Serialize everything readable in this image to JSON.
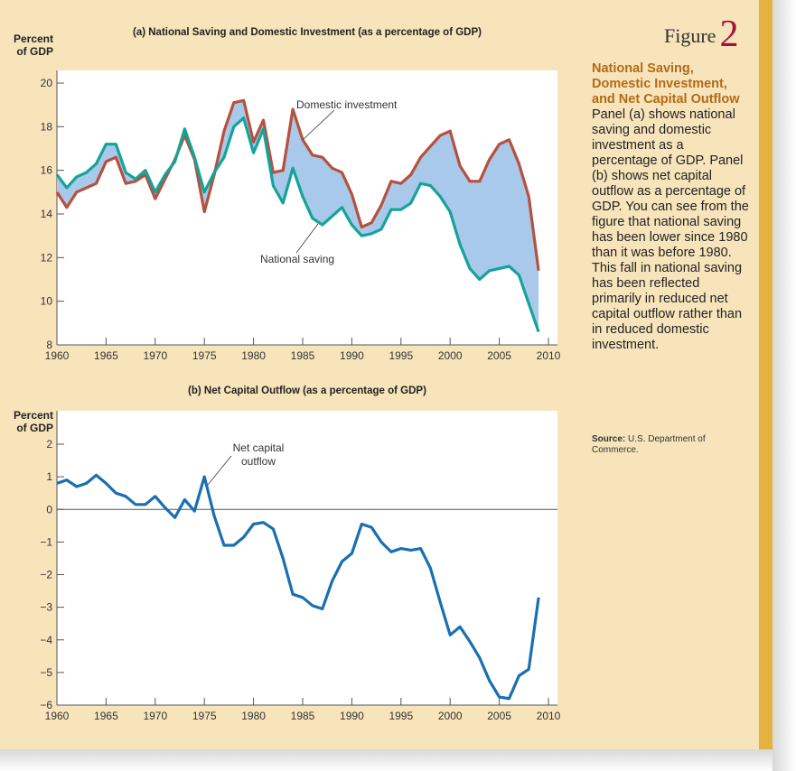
{
  "figure": {
    "label": "Figure",
    "number": "2"
  },
  "caption": {
    "title": "National Saving, Domestic Investment, and Net Capital Outflow",
    "body": "Panel (a) shows national saving and domestic investment as a percentage of GDP. Panel (b) shows net capital outflow as a percentage of GDP. You can see from the figure that national saving has been lower since 1980 than it was before 1980. This fall in national saving has been reflected primarily in reduced net capital outflow rather than in reduced domestic investment.",
    "source_label": "Source:",
    "source_text": "U.S. Department of Commerce."
  },
  "colors": {
    "background": "#f8e4bb",
    "stripe": "#e4b23e",
    "investment": "#b5513f",
    "saving": "#14a39a",
    "fill": "#a9c9ea",
    "outflow": "#1a6fb0",
    "accent": "#a3123a",
    "title": "#b26b16"
  },
  "chart_data": [
    {
      "type": "line",
      "title": "(a) National Saving and Domestic Investment (as a percentage of GDP)",
      "ylabel": "Percent of GDP",
      "ylabel_lines": [
        "Percent",
        "of GDP"
      ],
      "xlim": [
        1960,
        2010
      ],
      "ylim": [
        8,
        20
      ],
      "xticks": [
        1960,
        1965,
        1970,
        1975,
        1980,
        1985,
        1990,
        1995,
        2000,
        2005,
        2010
      ],
      "yticks": [
        8,
        10,
        12,
        14,
        16,
        18,
        20
      ],
      "grid": false,
      "x": [
        1960,
        1961,
        1962,
        1963,
        1964,
        1965,
        1966,
        1967,
        1968,
        1969,
        1970,
        1971,
        1972,
        1973,
        1974,
        1975,
        1976,
        1977,
        1978,
        1979,
        1980,
        1981,
        1982,
        1983,
        1984,
        1985,
        1986,
        1987,
        1988,
        1989,
        1990,
        1991,
        1992,
        1993,
        1994,
        1995,
        1996,
        1997,
        1998,
        1999,
        2000,
        2001,
        2002,
        2003,
        2004,
        2005,
        2006,
        2007,
        2008,
        2009
      ],
      "series": [
        {
          "name": "Domestic investment",
          "values": [
            15.0,
            14.3,
            15.0,
            15.2,
            15.4,
            16.4,
            16.6,
            15.4,
            15.5,
            15.8,
            14.7,
            15.6,
            16.5,
            17.6,
            16.5,
            14.1,
            15.8,
            17.8,
            19.1,
            19.2,
            17.3,
            18.3,
            15.9,
            16.0,
            18.8,
            17.4,
            16.7,
            16.6,
            16.1,
            15.9,
            14.9,
            13.4,
            13.6,
            14.4,
            15.5,
            15.4,
            15.8,
            16.6,
            17.1,
            17.6,
            17.8,
            16.2,
            15.5,
            15.5,
            16.5,
            17.2,
            17.4,
            16.3,
            14.8,
            11.4
          ]
        },
        {
          "name": "National saving",
          "values": [
            15.8,
            15.2,
            15.7,
            15.9,
            16.3,
            17.2,
            17.2,
            15.9,
            15.6,
            16.0,
            15.0,
            15.8,
            16.4,
            17.9,
            16.6,
            15.0,
            15.9,
            16.6,
            18.0,
            18.4,
            16.8,
            17.9,
            15.3,
            14.5,
            16.1,
            14.8,
            13.8,
            13.5,
            13.9,
            14.3,
            13.5,
            13.0,
            13.1,
            13.3,
            14.2,
            14.2,
            14.5,
            15.4,
            15.3,
            14.8,
            14.1,
            12.6,
            11.5,
            11.0,
            11.4,
            11.5,
            11.6,
            11.2,
            9.9,
            8.6
          ]
        }
      ]
    },
    {
      "type": "line",
      "title": "(b) Net Capital Outflow (as a percentage of GDP)",
      "ylabel": "Percent of GDP",
      "ylabel_lines": [
        "Percent",
        "of GDP"
      ],
      "xlim": [
        1960,
        2010
      ],
      "ylim": [
        -6,
        2
      ],
      "xticks": [
        1960,
        1965,
        1970,
        1975,
        1980,
        1985,
        1990,
        1995,
        2000,
        2005,
        2010
      ],
      "yticks": [
        -6,
        -5,
        -4,
        -3,
        -2,
        -1,
        0,
        1,
        2
      ],
      "ytick_labels": [
        "−6",
        "−5",
        "−4",
        "−3",
        "−2",
        "−1",
        "0",
        "1",
        "2"
      ],
      "grid": false,
      "x": [
        1960,
        1961,
        1962,
        1963,
        1964,
        1965,
        1966,
        1967,
        1968,
        1969,
        1970,
        1971,
        1972,
        1973,
        1974,
        1975,
        1976,
        1977,
        1978,
        1979,
        1980,
        1981,
        1982,
        1983,
        1984,
        1985,
        1986,
        1987,
        1988,
        1989,
        1990,
        1991,
        1992,
        1993,
        1994,
        1995,
        1996,
        1997,
        1998,
        1999,
        2000,
        2001,
        2002,
        2003,
        2004,
        2005,
        2006,
        2007,
        2008,
        2009
      ],
      "series": [
        {
          "name": "Net capital outflow",
          "label_lines": [
            "Net capital",
            "outflow"
          ],
          "values": [
            0.8,
            0.9,
            0.7,
            0.8,
            1.05,
            0.8,
            0.5,
            0.4,
            0.15,
            0.15,
            0.4,
            0.05,
            -0.25,
            0.3,
            -0.05,
            1.0,
            -0.2,
            -1.1,
            -1.1,
            -0.85,
            -0.45,
            -0.4,
            -0.6,
            -1.5,
            -2.6,
            -2.7,
            -2.95,
            -3.05,
            -2.2,
            -1.6,
            -1.35,
            -0.45,
            -0.55,
            -1.0,
            -1.3,
            -1.2,
            -1.25,
            -1.2,
            -1.8,
            -2.85,
            -3.85,
            -3.6,
            -4.05,
            -4.55,
            -5.25,
            -5.75,
            -5.8,
            -5.1,
            -4.9,
            -2.7
          ]
        }
      ]
    }
  ]
}
